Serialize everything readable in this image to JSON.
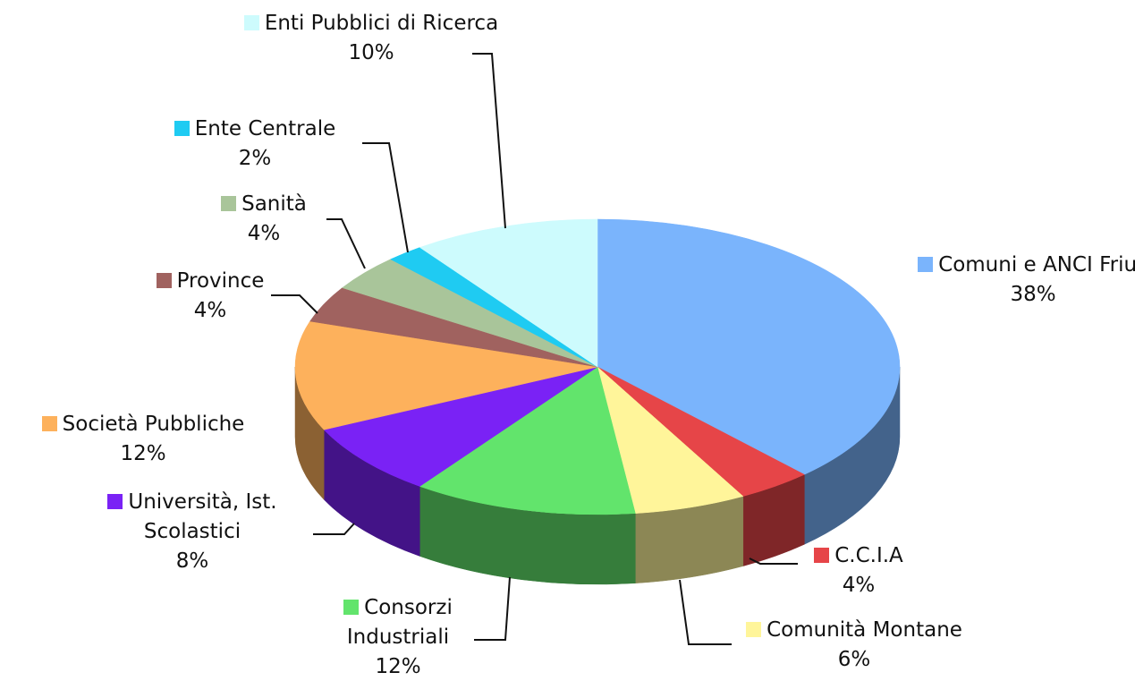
{
  "chart_data": {
    "type": "pie3d",
    "categories": [
      "Comuni e ANCI Friuli",
      "C.C.I.A",
      "Comunità Montane",
      "Consorzi Industriali",
      "Università, Ist. Scolastici",
      "Società Pubbliche",
      "Province",
      "Sanità",
      "Ente Centrale",
      "Enti Pubblici di Ricerca"
    ],
    "values": [
      38,
      4,
      6,
      12,
      8,
      12,
      4,
      4,
      2,
      10
    ],
    "value_labels": [
      "38%",
      "4%",
      "6%",
      "12%",
      "8%",
      "12%",
      "4%",
      "4%",
      "2%",
      "10%"
    ],
    "colors": [
      "#7ab4fc",
      "#e64548",
      "#fff59a",
      "#62e46c",
      "#7a22f5",
      "#fdb15c",
      "#a0625f",
      "#a9c59a",
      "#1fcbf2",
      "#cdfbfd"
    ]
  }
}
